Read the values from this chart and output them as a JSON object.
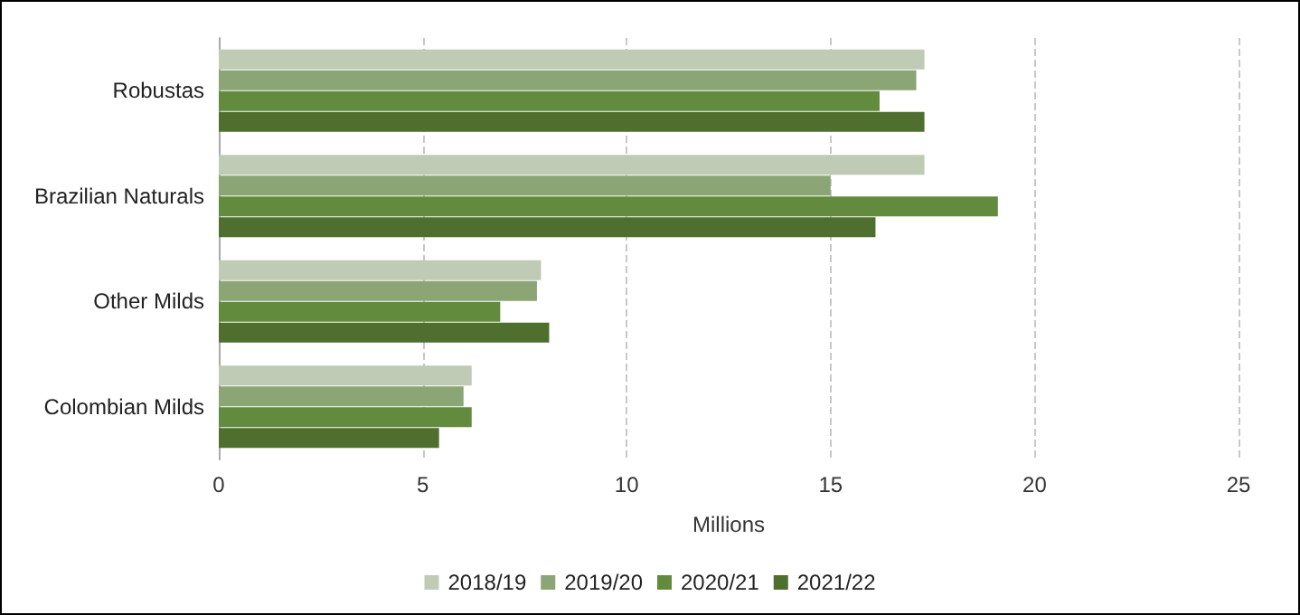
{
  "chart_data": {
    "type": "bar",
    "orientation": "horizontal",
    "xlabel": "Millions",
    "categories": [
      "Robustas",
      "Brazilian Naturals",
      "Other Milds",
      "Colombian Milds"
    ],
    "series": [
      {
        "name": "2018/19",
        "color": "#bfcbb5",
        "values": [
          17.3,
          17.3,
          7.9,
          6.2
        ]
      },
      {
        "name": "2019/20",
        "color": "#8ba574",
        "values": [
          17.1,
          15.0,
          7.8,
          6.0
        ]
      },
      {
        "name": "2020/21",
        "color": "#628b3e",
        "values": [
          16.2,
          19.1,
          6.9,
          6.2
        ]
      },
      {
        "name": "2021/22",
        "color": "#4e6f2e",
        "values": [
          17.3,
          16.1,
          8.1,
          5.4
        ]
      }
    ],
    "xlim": [
      0,
      25
    ],
    "xticks": [
      0,
      5,
      10,
      15,
      20,
      25
    ],
    "grid": "x",
    "legend": "bottom"
  }
}
